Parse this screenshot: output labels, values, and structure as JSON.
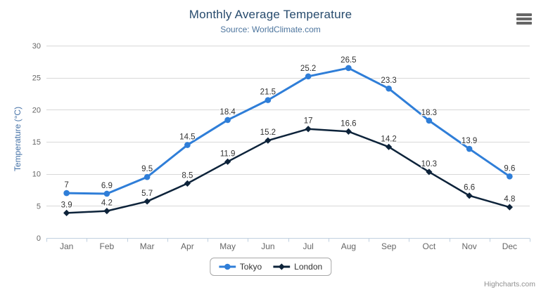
{
  "header": {
    "title": "Monthly Average Temperature",
    "subtitle": "Source: WorldClimate.com"
  },
  "menu": {
    "icon": "hamburger-menu-icon"
  },
  "credits": {
    "label": "Highcharts.com"
  },
  "colors": {
    "title": "#274b6d",
    "subtitle": "#4d759e",
    "axis_title": "#4572a7",
    "axis_labels": "#666666",
    "gridline": "#d8d8d8",
    "axis_line": "#c0d0e0",
    "data_label": "#333333"
  },
  "chart_data": {
    "type": "line",
    "title": "Monthly Average Temperature",
    "subtitle": "Source: WorldClimate.com",
    "categories": [
      "Jan",
      "Feb",
      "Mar",
      "Apr",
      "May",
      "Jun",
      "Jul",
      "Aug",
      "Sep",
      "Oct",
      "Nov",
      "Dec"
    ],
    "series": [
      {
        "name": "Tokyo",
        "marker": "circle",
        "color": "#2f7ed8",
        "line_width": 3,
        "values": [
          7,
          6.9,
          9.5,
          14.5,
          18.4,
          21.5,
          25.2,
          26.5,
          23.3,
          18.3,
          13.9,
          9.6
        ]
      },
      {
        "name": "London",
        "marker": "diamond",
        "color": "#0d233a",
        "line_width": 2.5,
        "values": [
          3.9,
          4.2,
          5.7,
          8.5,
          11.9,
          15.2,
          17,
          16.6,
          14.2,
          10.3,
          6.6,
          4.8
        ]
      }
    ],
    "xlabel": "",
    "ylabel": "Temperature (°C)",
    "ylim": [
      0,
      30
    ],
    "yticks": [
      0,
      5,
      10,
      15,
      20,
      25,
      30
    ],
    "grid": true,
    "data_labels": true,
    "legend_position": "bottom"
  }
}
